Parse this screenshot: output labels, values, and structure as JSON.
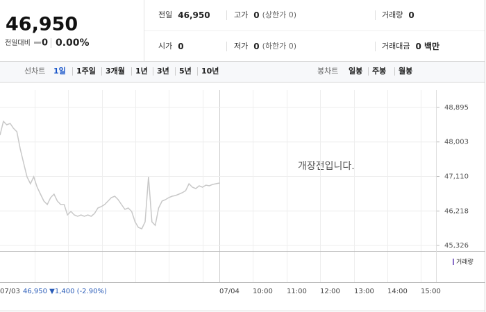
{
  "quote": {
    "price": "46,950",
    "change_label": "전일대비",
    "change": "0",
    "change_pct": "0.00%"
  },
  "stats": [
    [
      {
        "label": "전일",
        "value": "46,950"
      },
      {
        "label": "고가",
        "value": "0",
        "note": "(상한가 0)"
      },
      {
        "label": "거래량",
        "value": "0"
      }
    ],
    [
      {
        "label": "시가",
        "value": "0"
      },
      {
        "label": "저가",
        "value": "0",
        "note": "(하한가 0)"
      },
      {
        "label": "거래대금",
        "value": "0 백만"
      }
    ]
  ],
  "toolbar": {
    "line_label": "선차트",
    "line_periods": [
      "1일",
      "1주일",
      "3개월",
      "1년",
      "3년",
      "5년",
      "10년"
    ],
    "candle_label": "봉차트",
    "candle_periods": [
      "일봉",
      "주봉",
      "월봉"
    ]
  },
  "chart_data": {
    "type": "line",
    "annotation": "개장전입니다.",
    "volume_label": "거래량",
    "time_labels": [
      "07/03",
      "07/04",
      "10:00",
      "11:00",
      "12:00",
      "13:00",
      "14:00",
      "15:00"
    ],
    "summary": "46,950 ▼1,400 (-2.90%)",
    "color": "#c8c8c8",
    "ylim": [
      45183,
      49343
    ],
    "yticks": [
      {
        "value": 48895,
        "label": "48,895"
      },
      {
        "value": 48003,
        "label": "48,003"
      },
      {
        "value": 47110,
        "label": "47,110"
      },
      {
        "value": 46218,
        "label": "46,218"
      },
      {
        "value": 45326,
        "label": "45,326"
      }
    ],
    "grid": true,
    "values": [
      48178,
      48536,
      48447,
      48483,
      48357,
      48267,
      47819,
      47461,
      47102,
      46923,
      47102,
      46833,
      46654,
      46474,
      46385,
      46564,
      46654,
      46474,
      46385,
      46385,
      46116,
      46206,
      46116,
      46080,
      46116,
      46080,
      46116,
      46080,
      46152,
      46295,
      46331,
      46385,
      46474,
      46564,
      46600,
      46510,
      46385,
      46259,
      46295,
      46206,
      45937,
      45793,
      45757,
      45937,
      47102,
      45937,
      45847,
      46295,
      46474,
      46510,
      46564,
      46600,
      46618,
      46654,
      46690,
      46743,
      46923,
      46833,
      46797,
      46869,
      46833,
      46887,
      46869,
      46905,
      46923,
      46941
    ]
  }
}
